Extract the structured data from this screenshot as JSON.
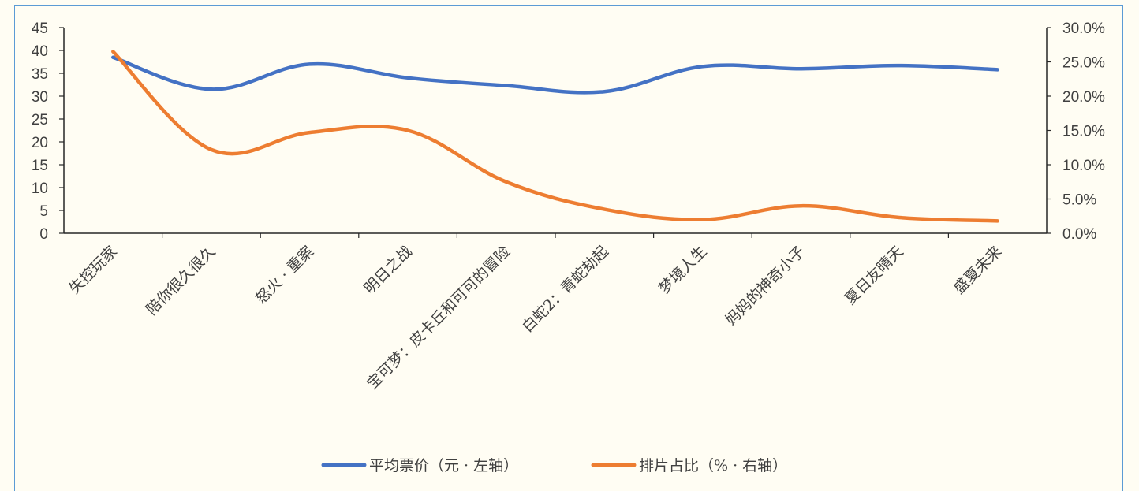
{
  "chart_data": {
    "type": "line",
    "title": "",
    "categories": [
      "失控玩家",
      "陪你很久很久",
      "怒火 · 重案",
      "明日之战",
      "宝可梦：皮卡丘和可可的冒险",
      "白蛇2：青蛇劫起",
      "梦境人生",
      "妈妈的神奇小子",
      "夏日友晴天",
      "盛夏未来"
    ],
    "series": [
      {
        "name": "平均票价（元 · 左轴）",
        "axis": "left",
        "color": "#4472c4",
        "values": [
          38.5,
          31.5,
          37.0,
          34.0,
          32.3,
          31.0,
          36.5,
          36.0,
          36.7,
          35.8
        ]
      },
      {
        "name": "排片占比（% · 右轴）",
        "axis": "right",
        "color": "#ed7d31",
        "values": [
          0.265,
          0.122,
          0.147,
          0.15,
          0.075,
          0.035,
          0.02,
          0.04,
          0.023,
          0.018
        ]
      }
    ],
    "y_left": {
      "min": 0,
      "max": 45,
      "ticks": [
        "0",
        "5",
        "10",
        "15",
        "20",
        "25",
        "30",
        "35",
        "40",
        "45"
      ]
    },
    "y_right": {
      "min": 0,
      "max": 0.3,
      "ticks": [
        "0.0%",
        "5.0%",
        "10.0%",
        "15.0%",
        "20.0%",
        "25.0%",
        "30.0%"
      ]
    },
    "grid": false,
    "smooth": true,
    "legend_position": "bottom"
  }
}
